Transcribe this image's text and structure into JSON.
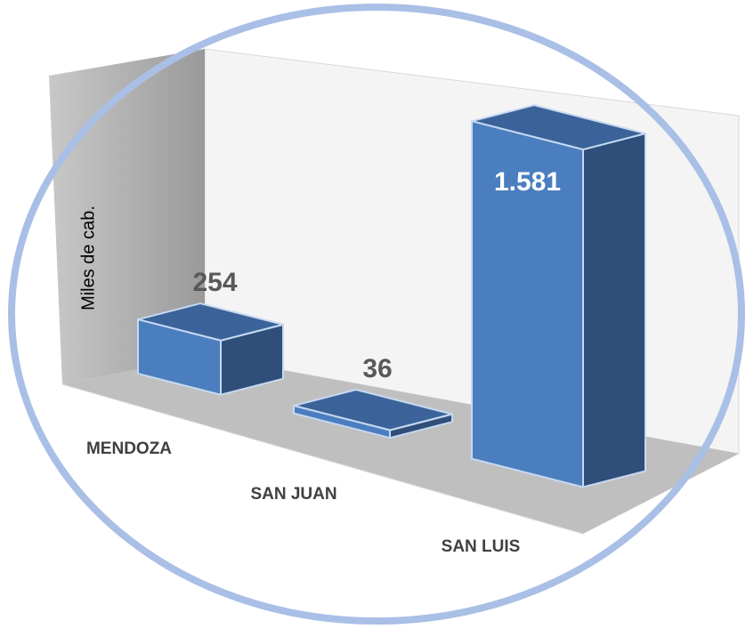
{
  "chart_data": {
    "type": "bar",
    "y_label": "Miles de cab.",
    "categories": [
      "MENDOZA",
      "SAN JUAN",
      "SAN LUIS"
    ],
    "values": [
      254,
      36,
      1581
    ],
    "value_labels": [
      "254",
      "36",
      "1.581"
    ],
    "color": "#4a7ebf",
    "ylim": [
      0,
      1700
    ]
  }
}
